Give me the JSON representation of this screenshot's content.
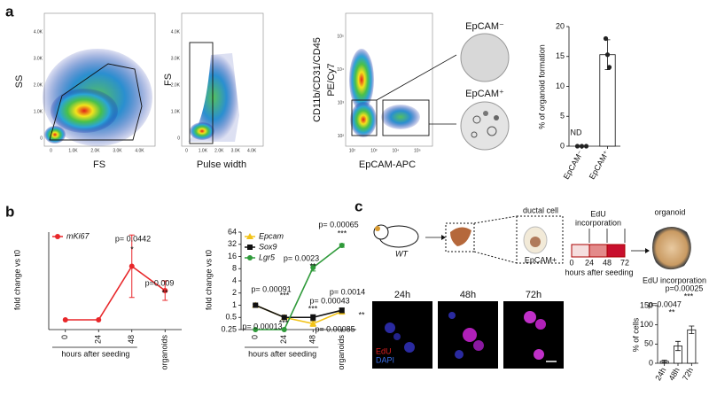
{
  "panel_labels": [
    "a",
    "b",
    "c"
  ],
  "flow": [
    {
      "x_label": "FS",
      "y_label": [
        "SS"
      ],
      "xticks": [
        "0",
        "1.0K",
        "2.0K",
        "3.0K",
        "4.0K"
      ],
      "yticks": [
        "0",
        "1.0K",
        "2.0K",
        "3.0K",
        "4.0K"
      ]
    },
    {
      "x_label": "Pulse width",
      "y_label": [
        "FS"
      ],
      "xticks": [
        "0",
        "1.0K",
        "2.0K",
        "3.0K",
        "4.0K"
      ],
      "yticks": [
        "0",
        "1.0K",
        "2.0K",
        "3.0K",
        "4.0K"
      ]
    },
    {
      "x_label": "EpCAM-APC",
      "y_label": [
        "CD11b/CD31/CD45",
        "PE/Cy7"
      ],
      "xticks": [
        "10²",
        "10³",
        "10⁴",
        "10⁵"
      ],
      "yticks": [
        "10²",
        "10³",
        "10⁴",
        "10⁵"
      ]
    }
  ],
  "organoid_images": [
    "EpCAM⁻",
    "EpCAM⁺"
  ],
  "schematic": {
    "mouse": "WT",
    "cell": "ductal cell",
    "marker": "EpCAM+",
    "edu": [
      "EdU",
      "incorporation"
    ],
    "times": [
      0,
      24,
      48,
      72
    ],
    "time_label": "hours after seeding",
    "organoid": "organoid"
  },
  "micrographs": {
    "times": [
      "24h",
      "48h",
      "72h"
    ],
    "stains": [
      "EdU",
      "DAPI"
    ]
  },
  "chart_data": [
    {
      "type": "bar",
      "categories": [
        "EpCAM⁻",
        "EpCAM⁺"
      ],
      "values": [
        0,
        15.3
      ],
      "errors": [
        0,
        2.5
      ],
      "points": [
        [
          0,
          0,
          0
        ],
        [
          18,
          15.3,
          13.2
        ]
      ],
      "y_label": "% of organoid formation",
      "ylim": [
        0,
        20
      ],
      "yticks": [
        0,
        5,
        10,
        15,
        20
      ],
      "annotations": [
        "ND"
      ]
    },
    {
      "type": "line",
      "categories": [
        "0",
        "24",
        "48",
        "organoids"
      ],
      "x_group_label": "hours after seeding",
      "y_label": "fold change vs t0",
      "ylim": [
        0,
        10
      ],
      "series": [
        {
          "name": "mKi67",
          "color": "#e8272a",
          "marker": "circle",
          "values": [
            1,
            1,
            6.5,
            4
          ],
          "errors": [
            0,
            0,
            3.2,
            1
          ]
        }
      ],
      "annotations": [
        "p= 0.0442",
        "*",
        "p=0.009",
        "**"
      ]
    },
    {
      "type": "line",
      "log_scale": true,
      "categories": [
        "0",
        "24",
        "48",
        "organoids"
      ],
      "x_group_label": "hours after seeding",
      "y_label": "fold change vs t0",
      "ylim": [
        0.25,
        64
      ],
      "yticks": [
        0.25,
        0.5,
        1,
        2,
        4,
        8,
        16,
        32,
        64
      ],
      "series": [
        {
          "name": "Epcam",
          "color": "#f2c318",
          "marker": "triangle",
          "values": [
            1,
            0.5,
            0.35,
            0.7
          ],
          "errors": [
            0.05,
            0.05,
            0.05,
            0.1
          ]
        },
        {
          "name": "Sox9",
          "color": "#111111",
          "marker": "square",
          "values": [
            1,
            0.5,
            0.5,
            0.75
          ],
          "errors": [
            0.05,
            0.05,
            0.08,
            0.1
          ]
        },
        {
          "name": "Lgr5",
          "color": "#2f9a3a",
          "marker": "circle",
          "values": [
            0.25,
            0.25,
            8.5,
            30
          ],
          "errors": [
            0,
            0,
            1.5,
            3
          ]
        }
      ],
      "annotations": [
        "p= 0.00065",
        "***",
        "p= 0.0023",
        "**",
        "p= 0.00091",
        "***",
        "p= 0.00043",
        "***",
        "p= 0.0014",
        "**",
        "p= 0.00013",
        "***",
        "p= 0.00085"
      ]
    },
    {
      "type": "bar",
      "title": "EdU incorporation",
      "categories": [
        "24h",
        "48h",
        "72h"
      ],
      "values": [
        5,
        45,
        87
      ],
      "errors": [
        3,
        12,
        10
      ],
      "y_label": "% of cells",
      "ylim": [
        0,
        150
      ],
      "yticks": [
        0,
        50,
        100,
        150
      ],
      "annotations": [
        "p=0.0047",
        "**",
        "p=0.00025",
        "***"
      ]
    }
  ]
}
